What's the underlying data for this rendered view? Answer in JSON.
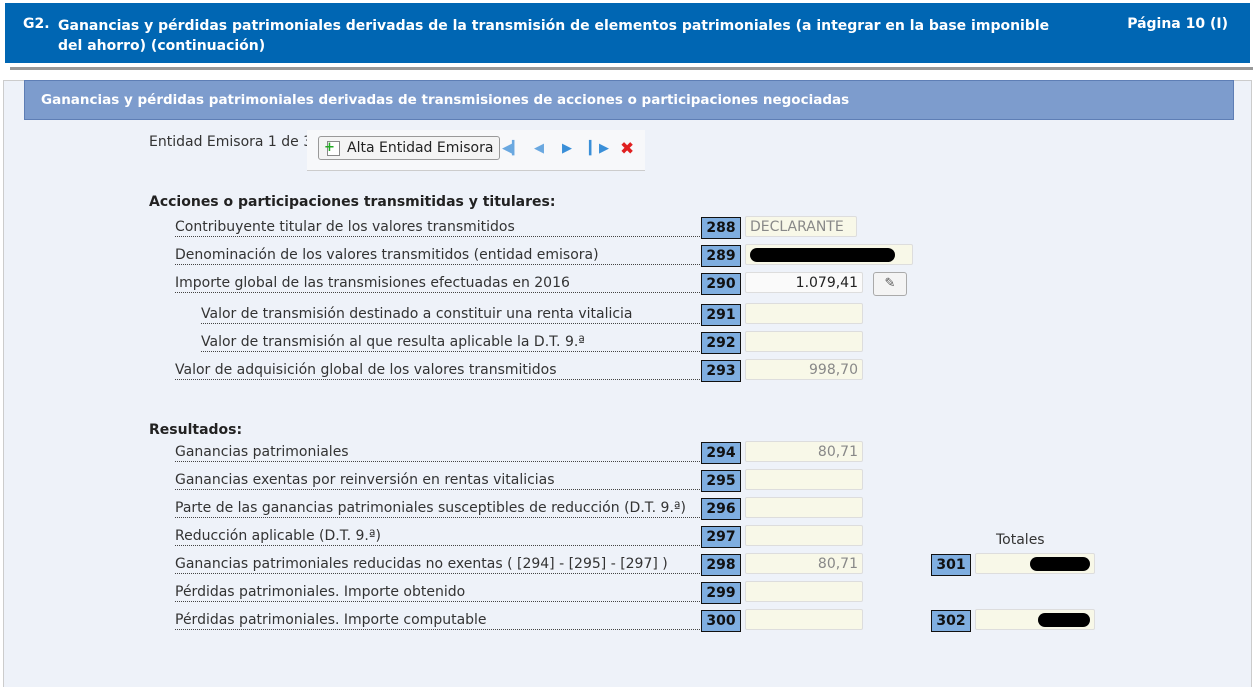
{
  "header": {
    "code": "G2.",
    "title": "Ganancias y pérdidas patrimoniales derivadas de la transmisión de elementos patrimoniales (a integrar en la base imponible del ahorro) (continuación)",
    "page": "Página 10 (I)"
  },
  "section": {
    "title": "Ganancias y pérdidas patrimoniales derivadas de transmisiones de acciones o participaciones negociadas"
  },
  "entity": {
    "counter": "Entidad Emisora 1 de 34",
    "add_label": "Alta Entidad Emisora",
    "icons": [
      "first-icon",
      "prev-icon",
      "next-icon",
      "last-icon",
      "delete-icon"
    ]
  },
  "group1": {
    "title": "Acciones o participaciones transmitidas y titulares:"
  },
  "group2": {
    "title": "Resultados:"
  },
  "rows": [
    {
      "num": "288",
      "label": "Contribuyente titular de los valores transmitidos",
      "value": "DECLARANTE"
    },
    {
      "num": "289",
      "label": "Denominación de los valores transmitidos (entidad emisora)",
      "value": ""
    },
    {
      "num": "290",
      "label": "Importe global de las transmisiones efectuadas en 2016",
      "value": "1.079,41"
    },
    {
      "num": "291",
      "label": "Valor de transmisión destinado a constituir una renta vitalicia",
      "value": ""
    },
    {
      "num": "292",
      "label": "Valor de transmisión al que resulta aplicable la D.T. 9.ª",
      "value": ""
    },
    {
      "num": "293",
      "label": "Valor de adquisición global de los valores transmitidos",
      "value": "998,70"
    },
    {
      "num": "294",
      "label": "Ganancias patrimoniales",
      "value": "80,71"
    },
    {
      "num": "295",
      "label": "Ganancias exentas por reinversión en rentas vitalicias",
      "value": ""
    },
    {
      "num": "296",
      "label": "Parte de las ganancias patrimoniales susceptibles de reducción (D.T. 9.ª)",
      "value": ""
    },
    {
      "num": "297",
      "label": "Reducción aplicable (D.T. 9.ª)",
      "value": ""
    },
    {
      "num": "298",
      "label": "Ganancias patrimoniales reducidas no exentas ( [294] - [295] - [297] )",
      "value": "80,71"
    },
    {
      "num": "299",
      "label": "Pérdidas patrimoniales. Importe obtenido",
      "value": ""
    },
    {
      "num": "300",
      "label": "Pérdidas patrimoniales. Importe computable",
      "value": ""
    }
  ],
  "totals": {
    "label": "Totales",
    "items": [
      {
        "num": "301"
      },
      {
        "num": "302"
      }
    ]
  }
}
